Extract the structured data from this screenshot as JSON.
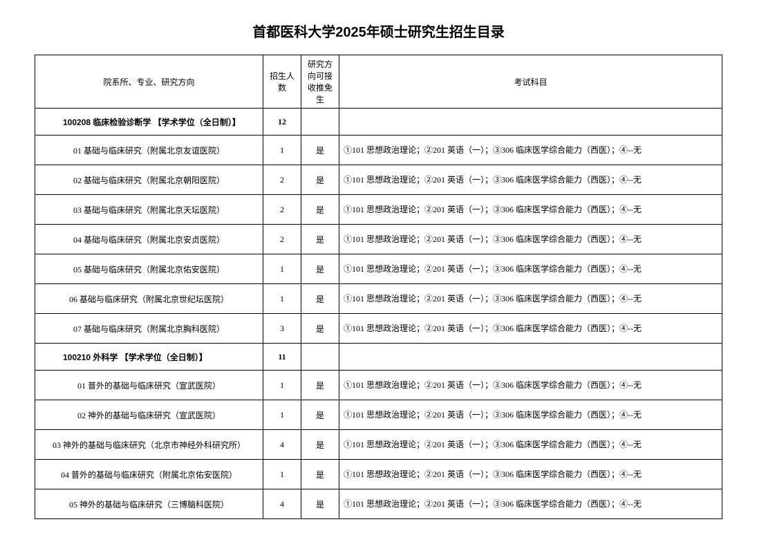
{
  "title": "首都医科大学2025年硕士研究生招生目录",
  "headers": {
    "dept": "院系所、专业、研究方向",
    "num": "招生人数",
    "rec": "研究方向可接收推免生",
    "subj": "考试科目"
  },
  "sections": [
    {
      "label": "100208 临床检验诊断学 【学术学位（全日制）】",
      "total": "12",
      "rows": [
        {
          "dept": "01 基础与临床研究（附属北京友谊医院）",
          "num": "1",
          "rec": "是",
          "subj": "①101 思想政治理论；②201 英语（一）；③306 临床医学综合能力（西医）；④--无"
        },
        {
          "dept": "02 基础与临床研究（附属北京朝阳医院）",
          "num": "2",
          "rec": "是",
          "subj": "①101 思想政治理论；②201 英语（一）；③306 临床医学综合能力（西医）；④--无"
        },
        {
          "dept": "03 基础与临床研究（附属北京天坛医院）",
          "num": "2",
          "rec": "是",
          "subj": "①101 思想政治理论；②201 英语（一）；③306 临床医学综合能力（西医）；④--无"
        },
        {
          "dept": "04 基础与临床研究（附属北京安贞医院）",
          "num": "2",
          "rec": "是",
          "subj": "①101 思想政治理论；②201 英语（一）；③306 临床医学综合能力（西医）；④--无"
        },
        {
          "dept": "05 基础与临床研究（附属北京佑安医院）",
          "num": "1",
          "rec": "是",
          "subj": "①101 思想政治理论；②201 英语（一）；③306 临床医学综合能力（西医）；④--无"
        },
        {
          "dept": "06 基础与临床研究（附属北京世纪坛医院）",
          "num": "1",
          "rec": "是",
          "subj": "①101 思想政治理论；②201 英语（一）；③306 临床医学综合能力（西医）；④--无"
        },
        {
          "dept": "07 基础与临床研究（附属北京胸科医院）",
          "num": "3",
          "rec": "是",
          "subj": "①101 思想政治理论；②201 英语（一）；③306 临床医学综合能力（西医）；④--无"
        }
      ]
    },
    {
      "label": "100210 外科学 【学术学位（全日制）】",
      "total": "11",
      "rows": [
        {
          "dept": "01 普外的基础与临床研究（宣武医院）",
          "num": "1",
          "rec": "是",
          "subj": "①101 思想政治理论；②201 英语（一）；③306 临床医学综合能力（西医）；④--无"
        },
        {
          "dept": "02 神外的基础与临床研究（宣武医院）",
          "num": "1",
          "rec": "是",
          "subj": "①101 思想政治理论；②201 英语（一）；③306 临床医学综合能力（西医）；④--无"
        },
        {
          "dept": "03 神外的基础与临床研究（北京市神经外科研究所）",
          "num": "4",
          "rec": "是",
          "subj": "①101 思想政治理论；②201 英语（一）；③306 临床医学综合能力（西医）；④--无"
        },
        {
          "dept": "04 普外的基础与临床研究（附属北京佑安医院）",
          "num": "1",
          "rec": "是",
          "subj": "①101 思想政治理论；②201 英语（一）；③306 临床医学综合能力（西医）；④--无"
        },
        {
          "dept": "05 神外的基础与临床研究（三博脑科医院）",
          "num": "4",
          "rec": "是",
          "subj": "①101 思想政治理论；②201 英语（一）；③306 临床医学综合能力（西医）；④--无"
        }
      ]
    }
  ]
}
